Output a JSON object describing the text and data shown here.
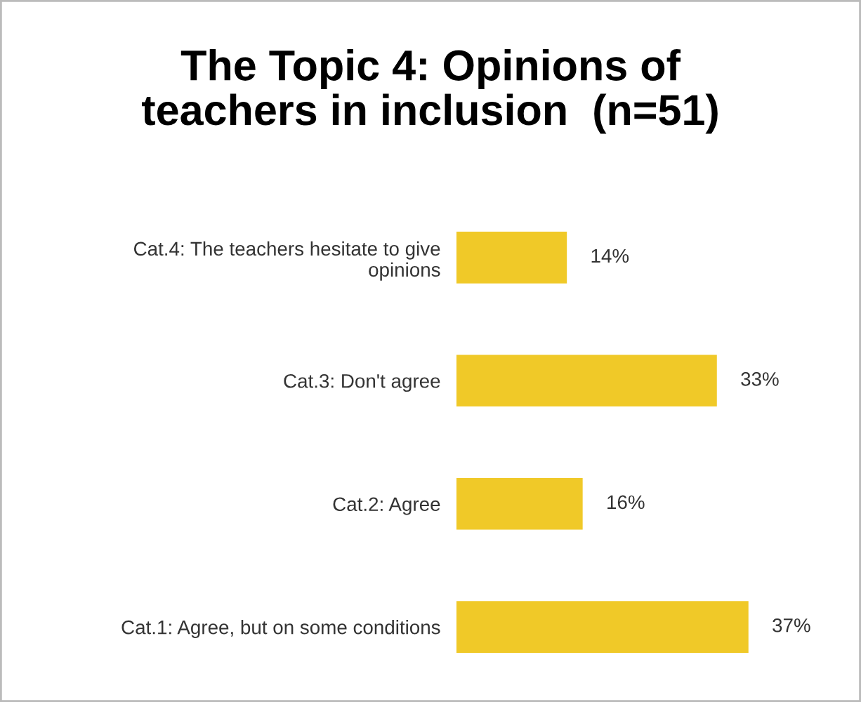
{
  "chart_data": {
    "type": "bar",
    "orientation": "horizontal",
    "title": "The Topic 4: Opinions of\nteachers in inclusion  (n=51)",
    "categories": [
      "Cat.4: The teachers hesitate to give\nopinions",
      "Cat.3: Don't agree",
      "Cat.2: Agree",
      "Cat.1: Agree, but on some conditions"
    ],
    "values": [
      14,
      33,
      16,
      37
    ],
    "value_labels": [
      "14%",
      "33%",
      "16%",
      "37%"
    ],
    "color": "#f0c928",
    "legend": false,
    "grid": false
  }
}
